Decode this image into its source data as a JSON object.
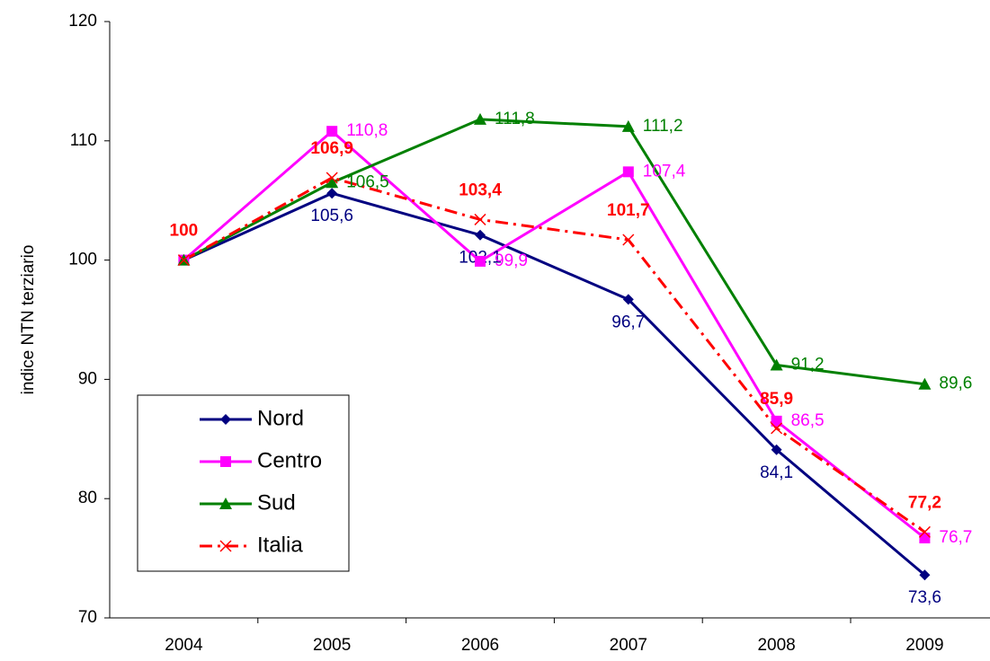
{
  "chart_data": {
    "type": "line",
    "y_label": "indice NTN terziario",
    "categories": [
      "2004",
      "2005",
      "2006",
      "2007",
      "2008",
      "2009"
    ],
    "ylim": [
      70,
      120
    ],
    "yticks": [
      70,
      80,
      90,
      100,
      110,
      120
    ],
    "legend": "bottom-left",
    "series": [
      {
        "name": "Nord",
        "color": "#000080",
        "marker": "diamond",
        "dash": "solid",
        "label_position": "below",
        "values": [
          100,
          105.6,
          102.1,
          96.7,
          84.1,
          73.6
        ],
        "value_labels": [
          null,
          "105,6",
          "102,1",
          "96,7",
          "84,1",
          "73,6"
        ]
      },
      {
        "name": "Centro",
        "color": "#ff00ff",
        "marker": "square",
        "dash": "solid",
        "label_position": "right",
        "values": [
          100,
          110.8,
          99.9,
          107.4,
          86.5,
          76.7
        ],
        "value_labels": [
          null,
          "110,8",
          "99,9",
          "107,4",
          "86,5",
          "76,7"
        ]
      },
      {
        "name": "Sud",
        "color": "#008000",
        "marker": "triangle",
        "dash": "solid",
        "label_position": "right",
        "values": [
          100,
          106.5,
          111.8,
          111.2,
          91.2,
          89.6
        ],
        "value_labels": [
          null,
          "106,5",
          "111,8",
          "111,2",
          "91,2",
          "89,6"
        ]
      },
      {
        "name": "Italia",
        "color": "#ff0000",
        "marker": "x",
        "dash": "dashdot",
        "label_position": "above",
        "values": [
          100,
          106.9,
          103.4,
          101.7,
          85.9,
          77.2
        ],
        "value_labels": [
          "100",
          "106,9",
          "103,4",
          "101,7",
          "85,9",
          "77,2"
        ]
      }
    ]
  }
}
